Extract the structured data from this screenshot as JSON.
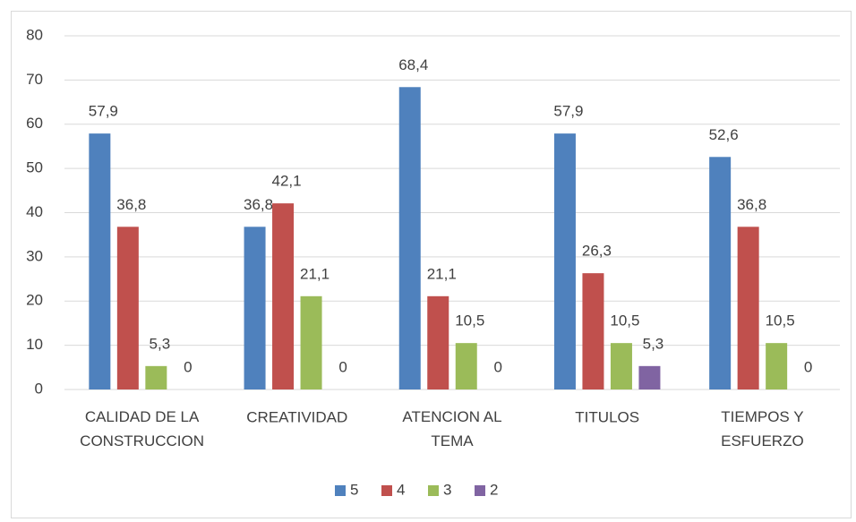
{
  "chart_data": {
    "type": "bar",
    "categories": [
      "CALIDAD  DE LA\nCONSTRUCCION",
      "CREATIVIDAD",
      "ATENCION AL\nTEMA",
      "TITULOS",
      "TIEMPOS  Y\nESFUERZO"
    ],
    "series": [
      {
        "name": "5",
        "color": "#4f81bd",
        "values": [
          57.9,
          36.8,
          68.4,
          57.9,
          52.6
        ],
        "value_labels": [
          "57,9",
          "36,8",
          "68,4",
          "57,9",
          "52,6"
        ]
      },
      {
        "name": "4",
        "color": "#c0504d",
        "values": [
          36.8,
          42.1,
          21.1,
          26.3,
          36.8
        ],
        "value_labels": [
          "36,8",
          "42,1",
          "21,1",
          "26,3",
          "36,8"
        ]
      },
      {
        "name": "3",
        "color": "#9bbb59",
        "values": [
          5.3,
          21.1,
          10.5,
          10.5,
          10.5
        ],
        "value_labels": [
          "5,3",
          "21,1",
          "10,5",
          "10,5",
          "10,5"
        ]
      },
      {
        "name": "2",
        "color": "#8064a2",
        "values": [
          0,
          0,
          0,
          5.3,
          0
        ],
        "value_labels": [
          "0",
          "0",
          "0",
          "5,3",
          "0"
        ]
      }
    ],
    "ylim": [
      0,
      80
    ],
    "yticks": [
      0,
      10,
      20,
      30,
      40,
      50,
      60,
      70,
      80
    ],
    "grid": true,
    "legend": "bottom"
  }
}
